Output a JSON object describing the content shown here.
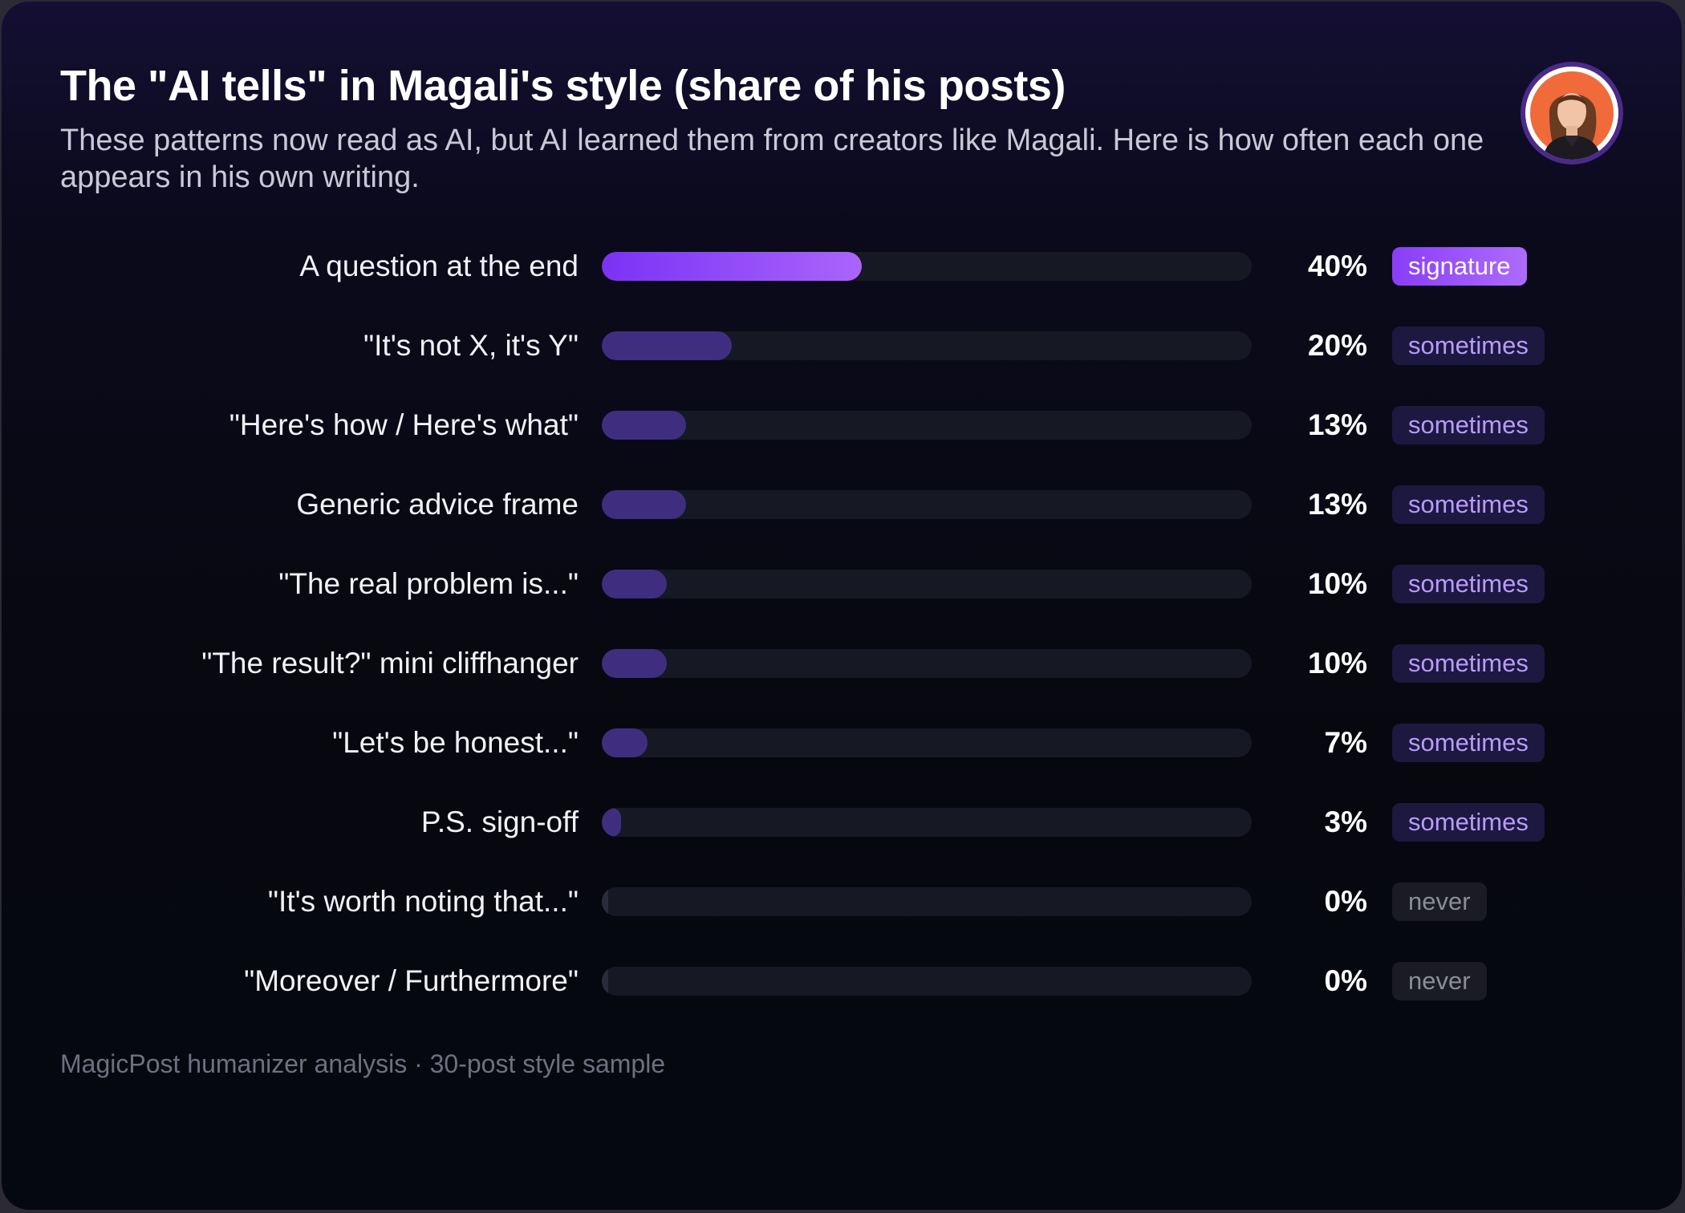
{
  "title": "The \"AI tells\" in Magali's style (share of his posts)",
  "subtitle": "These patterns now read as AI, but AI learned them from creators like Magali. Here is how often each one appears in his own writing.",
  "footnote": "MagicPost humanizer analysis · 30-post style sample",
  "avatar_icon": "portrait-avatar",
  "colors": {
    "signature_fill": "#7c32f5",
    "sometimes_fill": "#3f2e80",
    "track": "#161824",
    "signature_badge": "#9b4ff9",
    "sometimes_badge_text": "#b79cfa",
    "never_badge_text": "#8a8c99"
  },
  "chart_data": {
    "type": "bar",
    "orientation": "horizontal",
    "categories": [
      "A question at the end",
      "\"It's not X, it's Y\"",
      "\"Here's how / Here's what\"",
      "Generic advice frame",
      "\"The real problem is...\"",
      "\"The result?\" mini cliffhanger",
      "\"Let's be honest...\"",
      "P.S. sign-off",
      "\"It's worth noting that...\"",
      "\"Moreover / Furthermore\""
    ],
    "values": [
      40,
      20,
      13,
      13,
      10,
      10,
      7,
      3,
      0,
      0
    ],
    "value_labels": [
      "40%",
      "20%",
      "13%",
      "13%",
      "10%",
      "10%",
      "7%",
      "3%",
      "0%",
      "0%"
    ],
    "tags": [
      "signature",
      "sometimes",
      "sometimes",
      "sometimes",
      "sometimes",
      "sometimes",
      "sometimes",
      "sometimes",
      "never",
      "never"
    ],
    "xlim": [
      0,
      100
    ],
    "grid": false
  }
}
